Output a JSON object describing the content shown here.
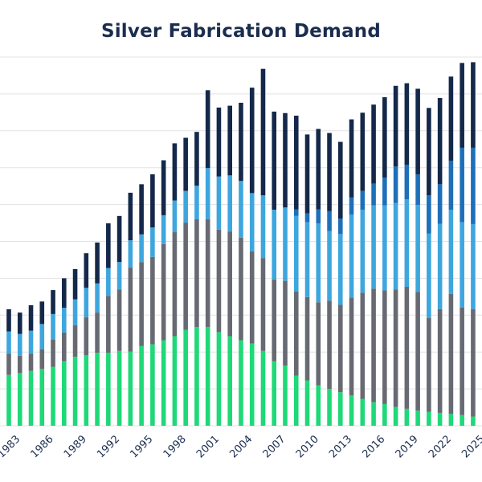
{
  "chart_data": {
    "type": "bar",
    "stacked": true,
    "title": "Silver Fabrication Demand",
    "xlabel": "",
    "ylabel": "",
    "ylim": [
      0,
      10
    ],
    "grid": true,
    "legend": "none",
    "categories": [
      1982,
      1983,
      1984,
      1985,
      1986,
      1987,
      1988,
      1989,
      1990,
      1991,
      1992,
      1993,
      1994,
      1995,
      1996,
      1997,
      1998,
      1999,
      2000,
      2001,
      2002,
      2003,
      2004,
      2005,
      2006,
      2007,
      2008,
      2009,
      2010,
      2011,
      2012,
      2013,
      2014,
      2015,
      2016,
      2017,
      2018,
      2019,
      2020,
      2021,
      2022,
      2023,
      2024,
      2025
    ],
    "tick_labels": [
      "1983",
      "1986",
      "1989",
      "1992",
      "1995",
      "1998",
      "2001",
      "2004",
      "2007",
      "2010",
      "2013",
      "2016",
      "2019",
      "2022",
      "2025"
    ],
    "series": [
      {
        "color": "#1fd877",
        "values": [
          1.31,
          1.38,
          1.43,
          1.49,
          1.54,
          1.6,
          1.75,
          1.87,
          1.91,
          1.98,
          1.98,
          2.03,
          2.01,
          2.16,
          2.21,
          2.32,
          2.43,
          2.6,
          2.68,
          2.68,
          2.54,
          2.43,
          2.32,
          2.23,
          2.03,
          1.75,
          1.63,
          1.36,
          1.23,
          1.1,
          1.0,
          0.91,
          0.82,
          0.73,
          0.64,
          0.59,
          0.51,
          0.46,
          0.41,
          0.38,
          0.35,
          0.32,
          0.29,
          0.25
        ]
      },
      {
        "color": "#676a72",
        "values": [
          0.51,
          0.57,
          0.47,
          0.46,
          0.53,
          0.74,
          0.78,
          0.86,
          1.03,
          1.09,
          1.54,
          1.67,
          2.28,
          2.28,
          2.37,
          2.61,
          2.82,
          2.91,
          2.92,
          2.92,
          2.78,
          2.84,
          2.78,
          2.5,
          2.52,
          2.22,
          2.3,
          2.28,
          2.26,
          2.25,
          2.39,
          2.37,
          2.66,
          2.88,
          3.08,
          3.08,
          3.19,
          3.31,
          3.22,
          2.54,
          2.81,
          3.26,
          2.92,
          2.91
        ]
      },
      {
        "color": "#3ea6de",
        "values": [
          0.58,
          0.61,
          0.59,
          0.63,
          0.69,
          0.69,
          0.67,
          0.7,
          0.8,
          0.79,
          0.76,
          0.74,
          0.74,
          0.75,
          0.8,
          0.78,
          0.86,
          0.86,
          0.91,
          1.39,
          1.44,
          1.52,
          1.54,
          1.58,
          1.7,
          1.89,
          1.99,
          2.05,
          2.03,
          2.14,
          1.89,
          1.92,
          2.25,
          2.25,
          2.26,
          2.31,
          2.34,
          2.37,
          2.36,
          2.29,
          2.32,
          2.28,
          2.31,
          2.31
        ]
      },
      {
        "color": "#1e6fb9",
        "values": [
          0,
          0,
          0,
          0,
          0,
          0,
          0,
          0,
          0,
          0,
          0,
          0,
          0,
          0,
          0,
          0,
          0,
          0,
          0,
          0,
          0,
          0,
          0,
          0,
          0,
          0,
          0,
          0.18,
          0.24,
          0.38,
          0.54,
          0.42,
          0.46,
          0.51,
          0.59,
          0.75,
          0.99,
          0.94,
          0.83,
          1.04,
          1.07,
          1.33,
          2.02,
          2.07
        ]
      },
      {
        "color": "#14284a",
        "values": [
          0.63,
          0.6,
          0.58,
          0.69,
          0.61,
          0.65,
          0.8,
          0.82,
          0.94,
          1.11,
          1.21,
          1.25,
          1.29,
          1.36,
          1.44,
          1.49,
          1.55,
          1.44,
          1.46,
          2.11,
          1.87,
          1.89,
          2.12,
          2.86,
          3.43,
          2.66,
          2.56,
          2.54,
          2.14,
          2.18,
          2.12,
          2.08,
          2.12,
          2.12,
          2.14,
          2.18,
          2.19,
          2.21,
          2.32,
          2.37,
          2.34,
          2.28,
          2.3,
          2.32
        ]
      }
    ]
  },
  "colors": {
    "title": "#1b2d4f",
    "grid": "#e3e3e3"
  }
}
